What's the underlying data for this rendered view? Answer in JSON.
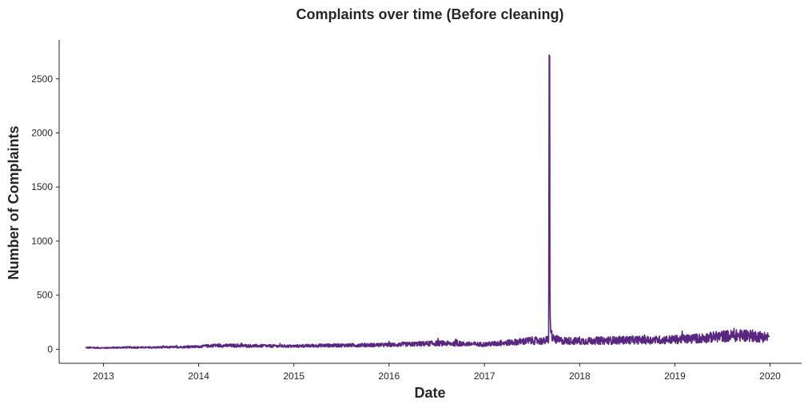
{
  "chart_data": {
    "type": "line",
    "title": "Complaints over time (Before cleaning)",
    "xlabel": "Date",
    "ylabel": "Number of Complaints",
    "x_ticks": [
      "2013",
      "2014",
      "2015",
      "2016",
      "2017",
      "2018",
      "2019",
      "2020"
    ],
    "y_ticks": [
      "0",
      "500",
      "1000",
      "1500",
      "2000",
      "2500"
    ],
    "xlim": [
      "2012-07-15",
      "2020-05-01"
    ],
    "ylim": [
      -130,
      2860
    ],
    "grid": false,
    "line_color": "#5a2780",
    "series": [
      {
        "name": "",
        "description_points": [
          [
            "2012-10-25",
            15
          ],
          [
            "2013-01-01",
            12
          ],
          [
            "2013-04-01",
            17
          ],
          [
            "2013-07-01",
            16
          ],
          [
            "2013-10-01",
            20
          ],
          [
            "2014-01-01",
            24
          ],
          [
            "2014-03-01",
            35
          ],
          [
            "2014-07-01",
            32
          ],
          [
            "2014-10-01",
            30
          ],
          [
            "2015-01-01",
            28
          ],
          [
            "2015-04-01",
            34
          ],
          [
            "2015-07-01",
            36
          ],
          [
            "2015-10-01",
            38
          ],
          [
            "2016-01-01",
            40
          ],
          [
            "2016-04-01",
            47
          ],
          [
            "2016-07-01",
            55
          ],
          [
            "2016-10-01",
            50
          ],
          [
            "2017-01-01",
            45
          ],
          [
            "2017-04-01",
            60
          ],
          [
            "2017-07-01",
            80
          ],
          [
            "2017-08-20",
            75
          ],
          [
            "2017-09-04",
            95
          ],
          [
            "2017-09-06",
            2720
          ],
          [
            "2017-09-08",
            2710
          ],
          [
            "2017-09-09",
            550
          ],
          [
            "2017-09-10",
            300
          ],
          [
            "2017-09-12",
            160
          ],
          [
            "2017-09-20",
            100
          ],
          [
            "2017-10-15",
            80
          ],
          [
            "2018-01-01",
            75
          ],
          [
            "2018-04-01",
            80
          ],
          [
            "2018-07-01",
            85
          ],
          [
            "2018-10-01",
            85
          ],
          [
            "2019-01-01",
            90
          ],
          [
            "2019-04-01",
            100
          ],
          [
            "2019-07-01",
            120
          ],
          [
            "2019-10-01",
            130
          ],
          [
            "2019-12-28",
            110
          ]
        ]
      }
    ]
  }
}
